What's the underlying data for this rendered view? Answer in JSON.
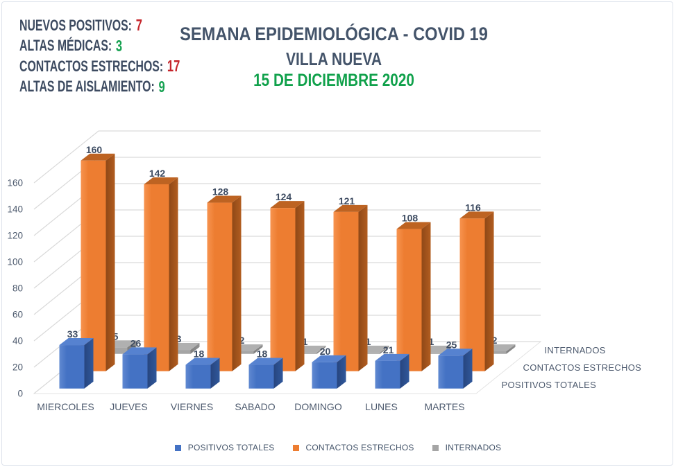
{
  "stats": {
    "items": [
      {
        "label": "NUEVOS POSITIVOS:",
        "value": "7",
        "value_color": "#c5252b"
      },
      {
        "label": "ALTAS MÉDICAS:",
        "value": "3",
        "value_color": "#17a252"
      },
      {
        "label": "CONTACTOS ESTRECHOS:",
        "value": "17",
        "value_color": "#c5252b"
      },
      {
        "label": "ALTAS DE AISLAMIENTO:",
        "value": "9",
        "value_color": "#17a252"
      }
    ]
  },
  "title": {
    "line1": "SEMANA EPIDEMIOLÓGICA - COVID 19",
    "line2": "VILLA NUEVA",
    "date": "15 DE DICIEMBRE 2020",
    "title_color": "#44546A",
    "date_color": "#10a14b"
  },
  "chart_data": {
    "type": "bar",
    "subtype": "3d-column",
    "categories": [
      "MIERCOLES",
      "JUEVES",
      "VIERNES",
      "SABADO",
      "DOMINGO",
      "LUNES",
      "MARTES"
    ],
    "series": [
      {
        "name": "POSITIVOS TOTALES",
        "values": [
          33,
          26,
          18,
          18,
          20,
          21,
          25
        ],
        "color": "#4472C4",
        "color_light": "#6089d1",
        "color_side": "#27457f",
        "color_side2": "#30589b",
        "color_top": "#5682d0"
      },
      {
        "name": "CONTACTOS ESTRECHOS",
        "values": [
          160,
          142,
          128,
          124,
          121,
          108,
          116
        ],
        "color": "#ED7D31",
        "color_light": "#f7934f",
        "color_side": "#8f4817",
        "color_side2": "#b25d20",
        "color_top": "#bd6322"
      },
      {
        "name": "INTERNADOS",
        "values": [
          5,
          3,
          2,
          1,
          1,
          1,
          2
        ],
        "color": "#A5A5A5",
        "color_light": "#b4b4b4",
        "color_side": "#7f7f7f",
        "color_side2": "#909090",
        "color_top": "#b0b0b0"
      }
    ],
    "title": "",
    "xlabel": "",
    "ylabel": "",
    "ylim": [
      0,
      160
    ],
    "ytick_step": 20,
    "yticks": [
      0,
      20,
      40,
      60,
      80,
      100,
      120,
      140,
      160
    ],
    "grid": true,
    "gridline_color": "#d9d9d9",
    "value_labels": true,
    "legend_position": "bottom"
  }
}
